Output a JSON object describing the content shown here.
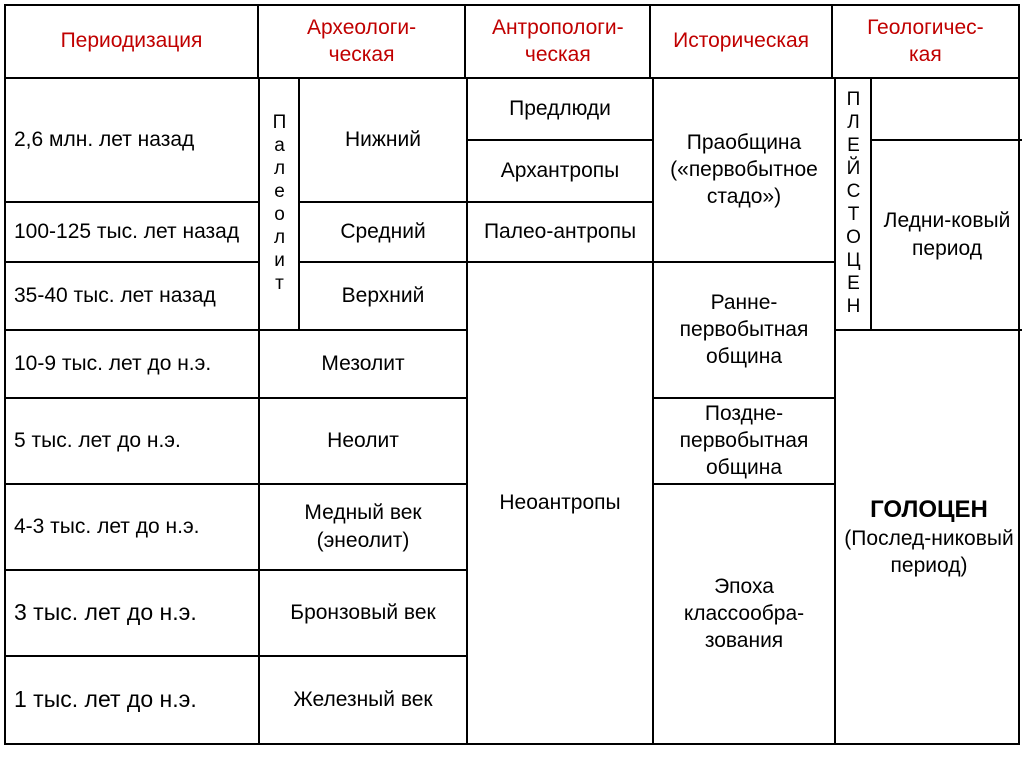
{
  "headers": {
    "periodization": "Периодизация",
    "archaeological": "Археологи-\nческая",
    "anthropological": "Антропологи-\nческая",
    "historical": "Историческая",
    "geological": "Геологичес-\nкая"
  },
  "periods": {
    "p1": "2,6 млн. лет назад",
    "p2": "100-125 тыс. лет назад",
    "p3": "35-40 тыс. лет назад",
    "p4": "10-9 тыс. лет до н.э.",
    "p5": "5 тыс. лет до н.э.",
    "p6": "4-3 тыс. лет до н.э.",
    "p7": "3 тыс. лет до н.э.",
    "p8": "1 тыс. лет до н.э."
  },
  "archaeological": {
    "paleolit": "Палеолит",
    "lower": "Нижний",
    "middle": "Средний",
    "upper": "Верхний",
    "mesolithic": "Мезолит",
    "neolithic": "Неолит",
    "copper": "Медный век (энеолит)",
    "bronze": "Бронзовый век",
    "iron": "Железный век"
  },
  "anthropological": {
    "predlyudi": "Предлюди",
    "arkhantropy": "Архантропы",
    "paleoantropy": "Палео-антропы",
    "neoantropy": "Неоантропы"
  },
  "historical": {
    "praobshchina": "Праобщина («первобытное стадо»)",
    "early_community": "Ранне-первобытная община",
    "late_community": "Поздне-первобытная община",
    "class_formation": "Эпоха классообра-зования"
  },
  "geological": {
    "pleistocene": "ПЛЕЙСТОЦЕН",
    "ice_age": "Ледни-ковый период",
    "holocene": "ГОЛОЦЕН",
    "holocene_sub": "(Послед-никовый период)"
  },
  "styling": {
    "header_color": "#c00000",
    "border_color": "#000000",
    "background": "#ffffff",
    "header_fontsize": 21,
    "body_fontsize": 21,
    "bold_fontsize": 24
  }
}
